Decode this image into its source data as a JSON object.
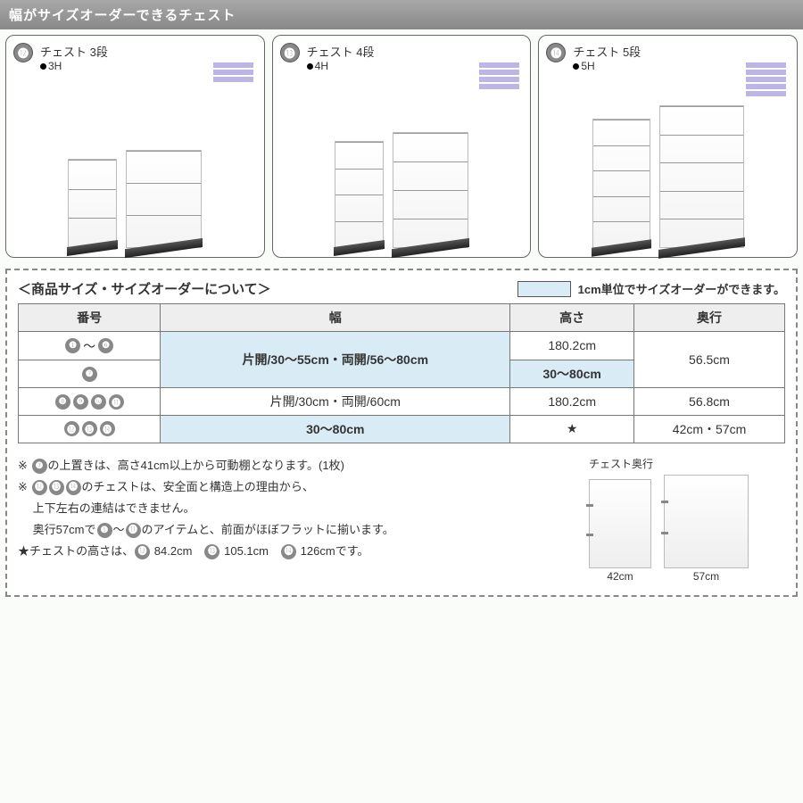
{
  "header": {
    "title": "幅がサイズオーダーできるチェスト"
  },
  "products": [
    {
      "num": "⓬",
      "title": "チェスト 3段",
      "sub": "3H",
      "drawers": 3,
      "small": "chest-small-3",
      "large": "chest-large-3"
    },
    {
      "num": "⓭",
      "title": "チェスト 4段",
      "sub": "4H",
      "drawers": 4,
      "small": "chest-small-4",
      "large": "chest-large-4"
    },
    {
      "num": "⓮",
      "title": "チェスト 5段",
      "sub": "5H",
      "drawers": 5,
      "small": "chest-small-5",
      "large": "chest-large-5"
    }
  ],
  "info": {
    "title": "＜商品サイズ・サイズオーダーについて＞",
    "legend": "1cm単位でサイズオーダーができます。",
    "table": {
      "headers": [
        "番号",
        "幅",
        "高さ",
        "奥行"
      ],
      "colors": {
        "highlight": "#d9ecf5"
      },
      "rows": [
        {
          "num_badges": [
            "❶",
            "～",
            "❻"
          ],
          "num_text": "",
          "width": "片開/30～55cm・両開/56～80cm",
          "width_hl": true,
          "width_rowspan": 2,
          "height": "180.2cm",
          "depth": "56.5cm",
          "depth_rowspan": 2
        },
        {
          "num_badges": [
            "❼"
          ],
          "height": "30～80cm",
          "height_hl": true
        },
        {
          "num_badges": [
            "❽",
            "❾",
            "❿",
            "⓫"
          ],
          "width": "片開/30cm・両開/60cm",
          "height": "180.2cm",
          "depth": "56.8cm"
        },
        {
          "num_badges": [
            "⓬",
            "⓭",
            "⓮"
          ],
          "width": "30～80cm",
          "width_hl": true,
          "height": "★",
          "depth": "42cm・57cm"
        }
      ]
    },
    "notes": [
      "※ ❼の上置きは、高さ41cm以上から可動棚となります。(1枚)",
      "※ ⓬⓭⓮のチェストは、安全面と構造上の理由から、",
      "　 上下左右の連結はできません。",
      "　 奥行57cmで❶～⓫のアイテムと、前面がほぼフラットに揃います。",
      "★チェストの高さは、⓬ 84.2cm　⓭ 105.1cm　⓮ 126cmです。"
    ],
    "depth": {
      "title": "チェスト奥行",
      "items": [
        {
          "label": "42cm",
          "cls": "depth-42"
        },
        {
          "label": "57cm",
          "cls": "depth-57"
        }
      ]
    }
  }
}
